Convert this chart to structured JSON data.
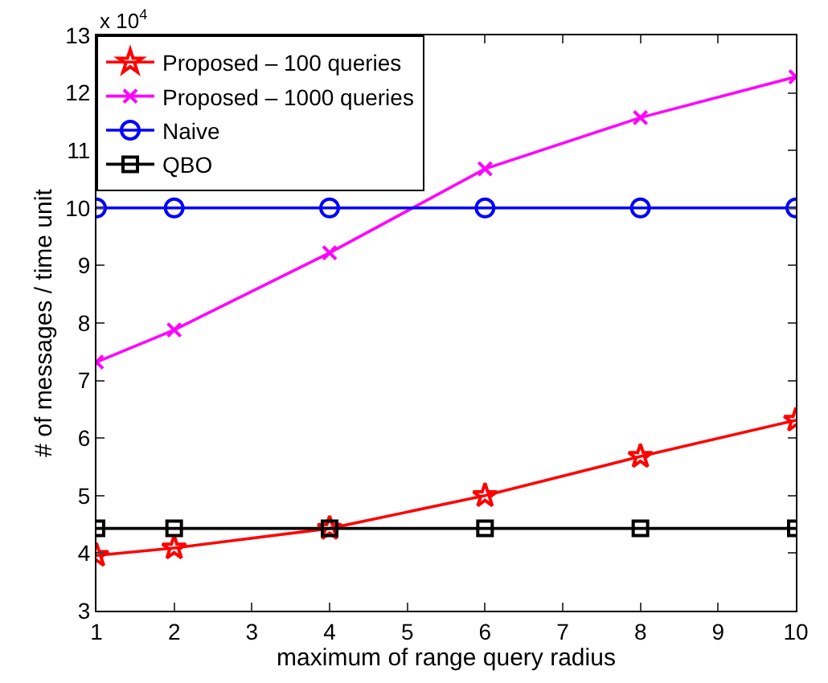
{
  "chart_data": {
    "type": "line",
    "xlabel": "maximum of range query radius",
    "ylabel": "# of messages / time unit",
    "annotations": [
      "x 10$^{4}$"
    ],
    "x": [
      1,
      2,
      4,
      6,
      8,
      10
    ],
    "series": [
      {
        "name": "Proposed – 100 queries",
        "color": "#ff0000",
        "marker": "star",
        "values": [
          3.96,
          4.09,
          4.43,
          5.0,
          5.68,
          6.31
        ]
      },
      {
        "name": "Proposed – 1000 queries",
        "color": "#ff00ff",
        "marker": "cross",
        "values": [
          7.32,
          7.88,
          9.22,
          10.68,
          11.57,
          12.28
        ]
      },
      {
        "name": "Naive",
        "color": "#0000ff",
        "marker": "circle",
        "values": [
          10.0,
          10.0,
          10.0,
          10.0,
          10.0,
          10.0
        ]
      },
      {
        "name": "QBO",
        "color": "#000000",
        "marker": "square",
        "values": [
          4.43,
          4.43,
          4.43,
          4.43,
          4.43,
          4.43
        ]
      }
    ],
    "xlim": [
      1,
      10
    ],
    "xticks": [
      1,
      2,
      3,
      4,
      5,
      6,
      7,
      8,
      9,
      10
    ],
    "ylim": [
      3,
      13
    ],
    "yticks": [
      3,
      4,
      5,
      6,
      7,
      8,
      9,
      10,
      11,
      12,
      13
    ],
    "legend": "top left",
    "line_style": "solid"
  }
}
